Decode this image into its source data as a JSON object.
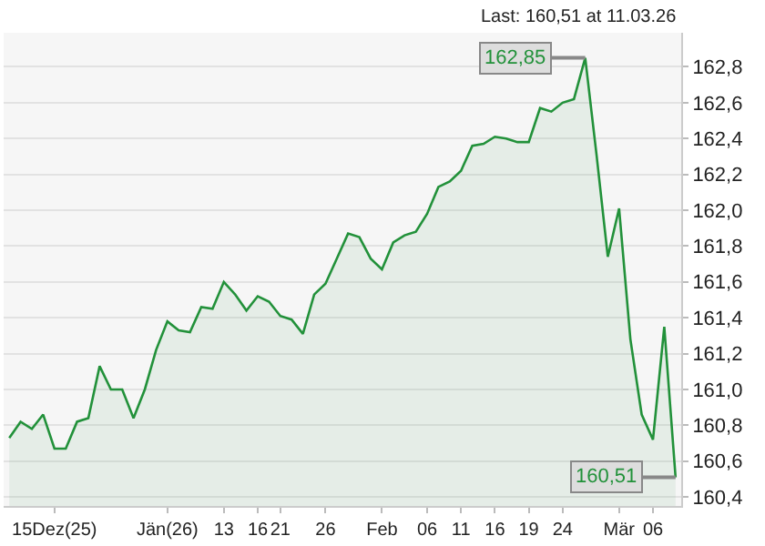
{
  "chart_data": {
    "type": "area",
    "categories": [
      null,
      null,
      null,
      null,
      "15Dez(25)",
      null,
      null,
      null,
      null,
      null,
      null,
      null,
      null,
      null,
      "Jän(26)",
      null,
      null,
      null,
      null,
      "13",
      null,
      null,
      "16",
      null,
      "21",
      null,
      null,
      null,
      "26",
      null,
      null,
      null,
      null,
      "Feb",
      null,
      null,
      null,
      "06",
      null,
      null,
      "11",
      null,
      null,
      "16",
      null,
      null,
      "19",
      null,
      null,
      "24",
      null,
      null,
      null,
      null,
      "Mär",
      null,
      null,
      "06",
      null,
      null
    ],
    "series": [
      {
        "color": "#22913a",
        "values": [
          160.73,
          160.82,
          160.78,
          160.86,
          160.67,
          160.67,
          160.82,
          160.84,
          161.13,
          161.0,
          161.0,
          160.84,
          161.0,
          161.22,
          161.38,
          161.33,
          161.32,
          161.46,
          161.45,
          161.6,
          161.53,
          161.44,
          161.52,
          161.49,
          161.41,
          161.39,
          161.31,
          161.53,
          161.59,
          161.73,
          161.87,
          161.85,
          161.73,
          161.67,
          161.82,
          161.86,
          161.88,
          161.98,
          162.13,
          162.16,
          162.22,
          162.36,
          162.37,
          162.41,
          162.4,
          162.38,
          162.38,
          162.57,
          162.55,
          162.6,
          162.62,
          162.85,
          162.31,
          161.74,
          162.01,
          161.28,
          160.86,
          160.72,
          161.35,
          160.51
        ]
      }
    ],
    "ylim": [
      160.35,
      162.99
    ],
    "yticks": [
      {
        "value": 160.4,
        "label": "160,4"
      },
      {
        "value": 160.6,
        "label": "160,6"
      },
      {
        "value": 160.8,
        "label": "160,8"
      },
      {
        "value": 161.0,
        "label": "161,0"
      },
      {
        "value": 161.2,
        "label": "161,2"
      },
      {
        "value": 161.4,
        "label": "161,4"
      },
      {
        "value": 161.6,
        "label": "161,6"
      },
      {
        "value": 161.8,
        "label": "161,8"
      },
      {
        "value": 162.0,
        "label": "162,0"
      },
      {
        "value": 162.2,
        "label": "162,2"
      },
      {
        "value": 162.4,
        "label": "162,4"
      },
      {
        "value": 162.6,
        "label": "162,6"
      },
      {
        "value": 162.8,
        "label": "162,8"
      }
    ],
    "grid": "y",
    "annotations": [
      "Last: 160,51 at 11.03.26",
      {
        "text": "162,85",
        "y": 162.85
      },
      {
        "text": "160,51",
        "y": 160.51
      }
    ]
  }
}
